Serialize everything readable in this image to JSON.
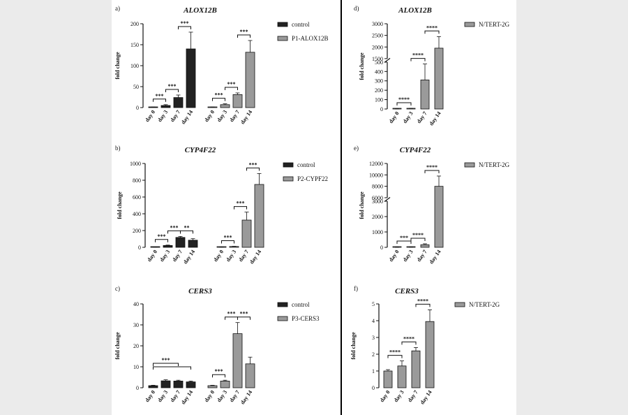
{
  "colors": {
    "control": "#222222",
    "treated": "#9a9a9a",
    "background": "#ebebeb",
    "sheet": "#ffffff"
  },
  "chart_data": [
    {
      "panel_label": "a)",
      "type": "bar",
      "title": "ALOX12B",
      "ylabel": "fold change",
      "categories": [
        "day 0",
        "day 3",
        "day 7",
        "day 14"
      ],
      "ylim": [
        0,
        200
      ],
      "yticks": [
        0,
        50,
        100,
        150,
        200
      ],
      "series": [
        {
          "name": "control",
          "values": [
            1,
            5,
            24,
            140
          ],
          "errors": [
            0.5,
            2,
            6,
            40
          ]
        },
        {
          "name": "P1-ALOX12B",
          "values": [
            1,
            7,
            31,
            132
          ],
          "errors": [
            0.5,
            2,
            4,
            28
          ]
        }
      ],
      "significance": [
        {
          "series": 0,
          "from": 0,
          "to": 1,
          "label": "***"
        },
        {
          "series": 0,
          "from": 1,
          "to": 2,
          "label": "***"
        },
        {
          "series": 0,
          "from": 2,
          "to": 3,
          "label": "***"
        },
        {
          "series": 1,
          "from": 0,
          "to": 1,
          "label": "***"
        },
        {
          "series": 1,
          "from": 1,
          "to": 2,
          "label": "***"
        },
        {
          "series": 1,
          "from": 2,
          "to": 3,
          "label": "***"
        }
      ]
    },
    {
      "panel_label": "b)",
      "type": "bar",
      "title": "CYP4F22",
      "ylabel": "fold change",
      "categories": [
        "day 0",
        "day 3",
        "day 7",
        "day 14"
      ],
      "ylim": [
        0,
        1000
      ],
      "yticks": [
        0,
        200,
        400,
        600,
        800,
        1000
      ],
      "series": [
        {
          "name": "control",
          "values": [
            1,
            22,
            118,
            85
          ],
          "errors": [
            1,
            5,
            12,
            18
          ]
        },
        {
          "name": "P2-CYPF22",
          "values": [
            1,
            10,
            325,
            750
          ],
          "errors": [
            1,
            3,
            95,
            130
          ]
        }
      ],
      "significance": [
        {
          "series": 0,
          "from": 0,
          "to": 1,
          "label": "***"
        },
        {
          "series": 0,
          "from": 1,
          "to": 2,
          "label": "***"
        },
        {
          "series": 0,
          "from": 2,
          "to": 3,
          "label": "**"
        },
        {
          "series": 1,
          "from": 0,
          "to": 1,
          "label": "***"
        },
        {
          "series": 1,
          "from": 1,
          "to": 2,
          "label": "***"
        },
        {
          "series": 1,
          "from": 2,
          "to": 3,
          "label": "***"
        }
      ]
    },
    {
      "panel_label": "c)",
      "type": "bar",
      "title": "CERS3",
      "ylabel": "fold change",
      "categories": [
        "day 0",
        "day 3",
        "day 7",
        "day 14"
      ],
      "ylim": [
        0,
        40
      ],
      "yticks": [
        0,
        10,
        20,
        30,
        40
      ],
      "series": [
        {
          "name": "control",
          "values": [
            1,
            3.3,
            3.2,
            2.8
          ],
          "errors": [
            0.2,
            0.5,
            0.4,
            0.4
          ]
        },
        {
          "name": "P3-CERS3",
          "values": [
            1,
            3.2,
            25.8,
            11.4
          ],
          "errors": [
            0.2,
            0.4,
            5.3,
            3.2
          ]
        }
      ],
      "significance": [
        {
          "series": 0,
          "from": 0,
          "to": 2,
          "label": "***"
        },
        {
          "series": 0,
          "from": 0,
          "to": 3,
          "label": ""
        },
        {
          "series": 1,
          "from": 0,
          "to": 1,
          "label": "***"
        },
        {
          "series": 1,
          "from": 1,
          "to": 2,
          "label": "***"
        },
        {
          "series": 1,
          "from": 2,
          "to": 3,
          "label": "***"
        }
      ]
    },
    {
      "panel_label": "d)",
      "type": "bar",
      "title": "ALOX12B",
      "ylabel": "fold change",
      "categories": [
        "day 0",
        "day 3",
        "day 7",
        "day 14"
      ],
      "ylim": [
        0,
        3000
      ],
      "yticks": [
        0,
        100,
        200,
        300,
        400,
        500,
        1500,
        2000,
        2500,
        3000
      ],
      "axis_break": [
        500,
        1500
      ],
      "series": [
        {
          "name": "N/TERT-2G",
          "values": [
            1,
            5,
            310,
            1950
          ],
          "errors": [
            0.5,
            2,
            170,
            500
          ]
        }
      ],
      "significance": [
        {
          "series": 0,
          "from": 0,
          "to": 1,
          "label": "****"
        },
        {
          "series": 0,
          "from": 1,
          "to": 2,
          "label": "****"
        },
        {
          "series": 0,
          "from": 2,
          "to": 3,
          "label": "****"
        }
      ]
    },
    {
      "panel_label": "e)",
      "type": "bar",
      "title": "CYP4F22",
      "ylabel": "fold change",
      "categories": [
        "day 0",
        "day 3",
        "day 7",
        "day 14"
      ],
      "ylim": [
        0,
        12000
      ],
      "yticks": [
        0,
        1000,
        2000,
        3000,
        6000,
        8000,
        10000,
        12000
      ],
      "axis_break": [
        3000,
        6000
      ],
      "series": [
        {
          "name": "N/TERT-2G",
          "values": [
            1,
            8,
            170,
            8000
          ],
          "errors": [
            1,
            4,
            60,
            1800
          ]
        }
      ],
      "significance": [
        {
          "series": 0,
          "from": 0,
          "to": 1,
          "label": "***"
        },
        {
          "series": 0,
          "from": 1,
          "to": 2,
          "label": "****"
        },
        {
          "series": 0,
          "from": 2,
          "to": 3,
          "label": "****"
        }
      ]
    },
    {
      "panel_label": "f)",
      "type": "bar",
      "title": "CERS3",
      "ylabel": "fold change",
      "categories": [
        "day 0",
        "day 3",
        "day 7",
        "day 14"
      ],
      "ylim": [
        0,
        5
      ],
      "yticks": [
        0,
        1,
        2,
        3,
        4,
        5
      ],
      "series": [
        {
          "name": "N/TERT-2G",
          "values": [
            1,
            1.3,
            2.2,
            3.95
          ],
          "errors": [
            0.08,
            0.3,
            0.2,
            0.7
          ]
        }
      ],
      "significance": [
        {
          "series": 0,
          "from": 0,
          "to": 1,
          "label": "****"
        },
        {
          "series": 0,
          "from": 1,
          "to": 2,
          "label": "****"
        },
        {
          "series": 0,
          "from": 2,
          "to": 3,
          "label": "****"
        }
      ]
    }
  ]
}
